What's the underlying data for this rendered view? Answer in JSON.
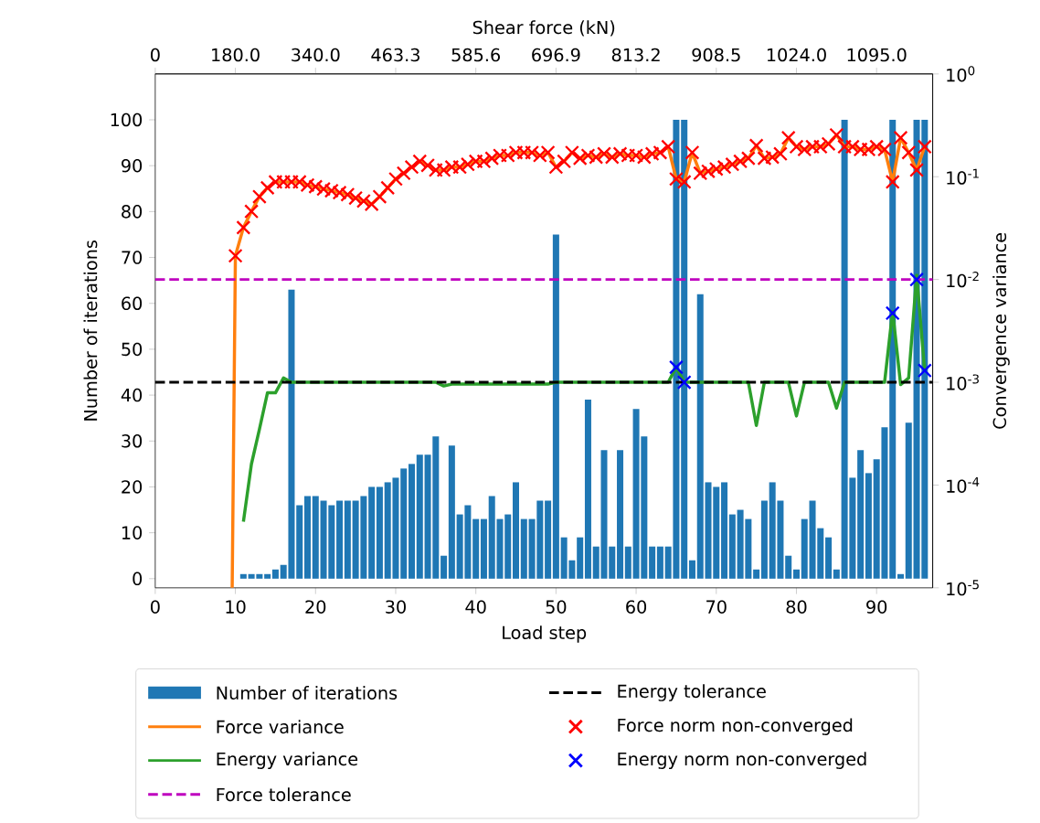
{
  "chart_data": {
    "type": "bar",
    "xlabel": "Load step",
    "ylabel": "Number of iterations",
    "y2label": "Convergence variance",
    "x2label": "Shear force (kN)",
    "xlim": [
      0,
      97
    ],
    "xticks": [
      0,
      10,
      20,
      30,
      40,
      50,
      60,
      70,
      80,
      90
    ],
    "ylim": [
      -2,
      110
    ],
    "yticks": [
      0,
      10,
      20,
      30,
      40,
      50,
      60,
      70,
      80,
      90,
      100
    ],
    "y2lim": [
      1e-05,
      1
    ],
    "log": "y2",
    "y2ticks": [
      {
        "value": 1e-05,
        "label": "10$^{-5}$"
      },
      {
        "value": 0.0001,
        "label": "10$^{-4}$"
      },
      {
        "value": 0.001,
        "label": "10$^{-3}$"
      },
      {
        "value": 0.01,
        "label": "10$^{-2}$"
      },
      {
        "value": 0.1,
        "label": "10$^{-1}$"
      },
      {
        "value": 1,
        "label": "10$^{0}$"
      }
    ],
    "annotations": [
      "0",
      "180.0",
      "340.0",
      "463.3",
      "585.6",
      "696.9",
      "813.2",
      "908.5",
      "1024.0",
      "1095.0"
    ],
    "legend": "bottom",
    "series": [
      {
        "name": "Number of iterations",
        "color": "#1f77b4",
        "x": [
          11,
          12,
          13,
          14,
          15,
          16,
          17,
          18,
          19,
          20,
          21,
          22,
          23,
          24,
          25,
          26,
          27,
          28,
          29,
          30,
          31,
          32,
          33,
          34,
          35,
          36,
          37,
          38,
          39,
          40,
          41,
          42,
          43,
          44,
          45,
          46,
          47,
          48,
          49,
          50,
          51,
          52,
          53,
          54,
          55,
          56,
          57,
          58,
          59,
          60,
          61,
          62,
          63,
          64,
          65,
          66,
          67,
          68,
          69,
          70,
          71,
          72,
          73,
          74,
          75,
          76,
          77,
          78,
          79,
          80,
          81,
          82,
          83,
          84,
          85,
          86,
          87,
          88,
          89,
          90,
          91,
          92,
          93,
          94,
          95,
          96
        ],
        "values": [
          1,
          1,
          1,
          1,
          2,
          3,
          63,
          16,
          18,
          18,
          17,
          16,
          17,
          17,
          17,
          18,
          20,
          20,
          21,
          22,
          24,
          25,
          27,
          27,
          31,
          5,
          29,
          14,
          16,
          13,
          13,
          18,
          13,
          14,
          21,
          13,
          13,
          17,
          17,
          75,
          9,
          4,
          9,
          39,
          7,
          28,
          7,
          28,
          7,
          37,
          31,
          7,
          7,
          7,
          100,
          100,
          4,
          62,
          21,
          20,
          21,
          14,
          15,
          13,
          2,
          17,
          21,
          17,
          5,
          2,
          13,
          17,
          11,
          9,
          2,
          100,
          22,
          28,
          23,
          26,
          33,
          100,
          1,
          34,
          100,
          100
        ]
      },
      {
        "name": "Force variance",
        "type": "line",
        "axis": "y2",
        "color": "#ff7f0e",
        "line_style": "solid",
        "x": [
          9.6,
          10,
          11,
          12,
          13,
          14,
          15,
          16,
          17,
          18,
          19,
          20,
          21,
          22,
          23,
          24,
          25,
          26,
          27,
          28,
          29,
          30,
          31,
          32,
          33,
          34,
          35,
          36,
          37,
          38,
          39,
          40,
          41,
          42,
          43,
          44,
          45,
          46,
          47,
          48,
          49,
          50,
          51,
          52,
          53,
          54,
          55,
          56,
          57,
          58,
          59,
          60,
          61,
          62,
          63,
          64,
          65,
          66,
          67,
          68,
          69,
          70,
          71,
          72,
          73,
          74,
          75,
          76,
          77,
          78,
          79,
          80,
          81,
          82,
          83,
          84,
          85,
          86,
          87,
          88,
          89,
          90,
          91,
          92,
          93,
          94,
          95,
          96
        ],
        "values": [
          1e-05,
          0.017,
          0.032,
          0.046,
          0.064,
          0.078,
          0.089,
          0.089,
          0.089,
          0.089,
          0.083,
          0.08,
          0.076,
          0.073,
          0.07,
          0.067,
          0.062,
          0.058,
          0.054,
          0.064,
          0.078,
          0.095,
          0.108,
          0.124,
          0.141,
          0.129,
          0.116,
          0.116,
          0.124,
          0.124,
          0.132,
          0.141,
          0.141,
          0.151,
          0.161,
          0.161,
          0.172,
          0.172,
          0.172,
          0.161,
          0.172,
          0.124,
          0.141,
          0.172,
          0.151,
          0.161,
          0.155,
          0.167,
          0.155,
          0.167,
          0.161,
          0.161,
          0.155,
          0.167,
          0.172,
          0.196,
          0.095,
          0.089,
          0.172,
          0.108,
          0.113,
          0.119,
          0.124,
          0.132,
          0.141,
          0.151,
          0.201,
          0.151,
          0.155,
          0.167,
          0.239,
          0.196,
          0.184,
          0.196,
          0.196,
          0.209,
          0.255,
          0.196,
          0.196,
          0.184,
          0.184,
          0.196,
          0.184,
          0.089,
          0.239,
          0.172,
          0.116,
          0.196
        ]
      },
      {
        "name": "Energy variance",
        "type": "line",
        "axis": "y2",
        "color": "#2ca02c",
        "line_style": "solid",
        "x": [
          11,
          12,
          13,
          14,
          15,
          16,
          17,
          18,
          19,
          20,
          21,
          22,
          23,
          24,
          25,
          26,
          27,
          28,
          29,
          30,
          31,
          32,
          33,
          34,
          35,
          36,
          37,
          38,
          39,
          40,
          41,
          42,
          43,
          44,
          45,
          46,
          47,
          48,
          49,
          50,
          51,
          52,
          53,
          54,
          55,
          56,
          57,
          58,
          59,
          60,
          61,
          62,
          63,
          64,
          65,
          66,
          67,
          68,
          69,
          70,
          71,
          72,
          73,
          74,
          75,
          76,
          77,
          78,
          79,
          80,
          81,
          82,
          83,
          84,
          85,
          86,
          87,
          88,
          89,
          90,
          91,
          92,
          93,
          94,
          95,
          96
        ],
        "values": [
          4.4e-05,
          0.00016,
          0.00035,
          0.00079,
          0.00079,
          0.0011,
          0.001,
          0.001,
          0.001,
          0.001,
          0.001,
          0.001,
          0.001,
          0.001,
          0.001,
          0.001,
          0.001,
          0.001,
          0.001,
          0.001,
          0.001,
          0.001,
          0.001,
          0.001,
          0.001,
          0.00092,
          0.00096,
          0.00096,
          0.00096,
          0.00096,
          0.00096,
          0.00096,
          0.00096,
          0.00096,
          0.00096,
          0.00096,
          0.00096,
          0.00096,
          0.00096,
          0.001,
          0.001,
          0.001,
          0.001,
          0.001,
          0.001,
          0.001,
          0.001,
          0.001,
          0.001,
          0.001,
          0.001,
          0.001,
          0.001,
          0.001,
          0.0014,
          0.001,
          0.001,
          0.001,
          0.001,
          0.001,
          0.001,
          0.001,
          0.001,
          0.001,
          0.00038,
          0.001,
          0.001,
          0.001,
          0.001,
          0.00047,
          0.001,
          0.001,
          0.001,
          0.001,
          0.00056,
          0.001,
          0.001,
          0.001,
          0.001,
          0.001,
          0.001,
          0.0049,
          0.00095,
          0.0011,
          0.011,
          0.0013
        ]
      },
      {
        "name": "Force norm non-converged",
        "type": "scatter",
        "axis": "y2",
        "color": "#ff0000",
        "marker": "cross",
        "x": [
          10,
          11,
          12,
          13,
          14,
          15,
          16,
          17,
          18,
          19,
          20,
          21,
          22,
          23,
          24,
          25,
          26,
          27,
          28,
          29,
          30,
          31,
          32,
          33,
          34,
          35,
          36,
          37,
          38,
          39,
          40,
          41,
          42,
          43,
          44,
          45,
          46,
          47,
          48,
          49,
          50,
          51,
          52,
          53,
          54,
          55,
          56,
          57,
          58,
          59,
          60,
          61,
          62,
          63,
          64,
          65,
          66,
          67,
          68,
          69,
          70,
          71,
          72,
          73,
          74,
          75,
          76,
          77,
          78,
          79,
          80,
          81,
          82,
          83,
          84,
          85,
          86,
          87,
          88,
          89,
          90,
          91,
          92,
          93,
          94,
          95,
          96
        ],
        "values": [
          0.017,
          0.032,
          0.046,
          0.064,
          0.078,
          0.089,
          0.089,
          0.089,
          0.089,
          0.083,
          0.08,
          0.076,
          0.073,
          0.07,
          0.067,
          0.062,
          0.058,
          0.054,
          0.064,
          0.078,
          0.095,
          0.108,
          0.124,
          0.141,
          0.129,
          0.116,
          0.116,
          0.124,
          0.124,
          0.132,
          0.141,
          0.141,
          0.151,
          0.161,
          0.161,
          0.172,
          0.172,
          0.172,
          0.161,
          0.172,
          0.124,
          0.141,
          0.172,
          0.151,
          0.161,
          0.155,
          0.167,
          0.155,
          0.167,
          0.161,
          0.161,
          0.155,
          0.167,
          0.172,
          0.196,
          0.095,
          0.089,
          0.172,
          0.108,
          0.113,
          0.119,
          0.124,
          0.132,
          0.141,
          0.151,
          0.201,
          0.151,
          0.155,
          0.167,
          0.239,
          0.196,
          0.184,
          0.196,
          0.196,
          0.209,
          0.255,
          0.196,
          0.196,
          0.184,
          0.184,
          0.196,
          0.184,
          0.089,
          0.239,
          0.172,
          0.116,
          0.196
        ]
      },
      {
        "name": "Energy norm non-converged",
        "type": "scatter",
        "axis": "y2",
        "color": "#0000ff",
        "marker": "cross",
        "x": [
          65,
          66,
          92,
          95,
          96
        ],
        "values": [
          0.0014,
          0.001,
          0.0047,
          0.01,
          0.0013
        ]
      }
    ],
    "ref_lines": [
      {
        "axis": "y2",
        "value": 0.01,
        "label": "Force tolerance",
        "color": "#bf00bf",
        "line_style": "dashed"
      },
      {
        "axis": "y2",
        "value": 0.001,
        "label": "Energy tolerance",
        "color": "#000000",
        "line_style": "dashed"
      }
    ]
  }
}
